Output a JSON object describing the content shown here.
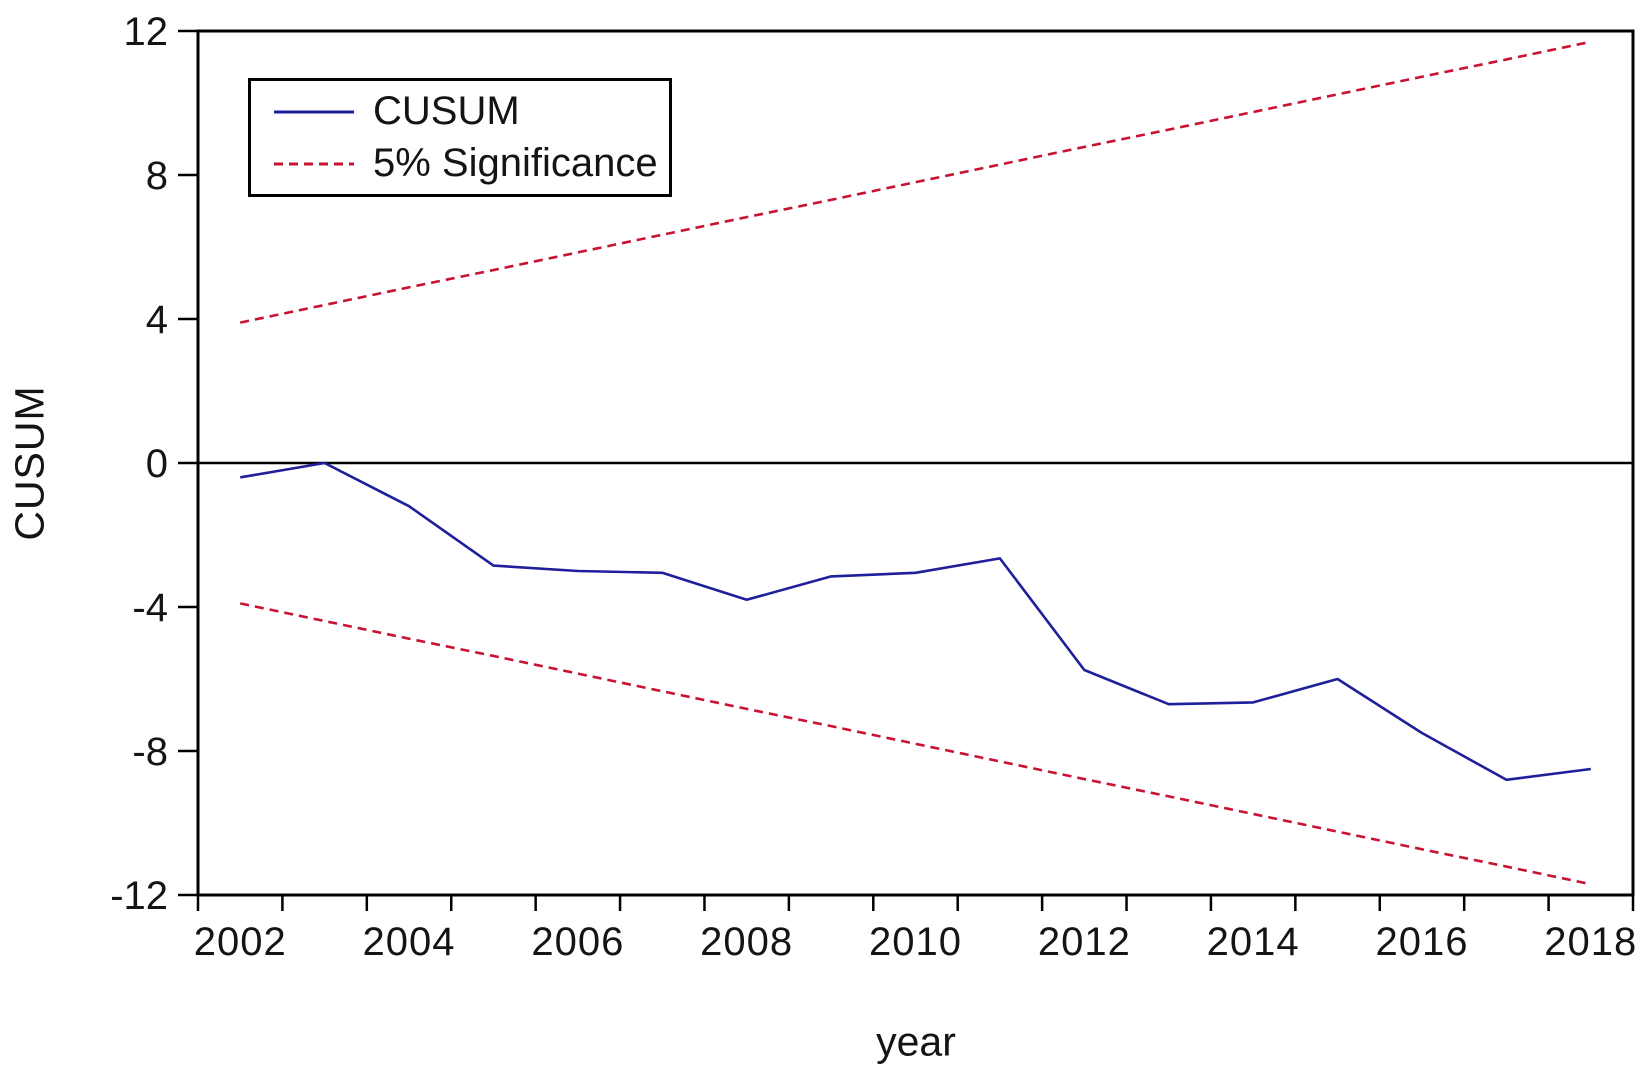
{
  "legend": {
    "entries": [
      {
        "label": "CUSUM",
        "color": "#1f1f9c",
        "line_style": "solid"
      },
      {
        "label": "5% Significance",
        "color": "#c81432",
        "line_style": "dashed"
      }
    ]
  },
  "chart_data": {
    "type": "line",
    "title": "",
    "xlabel": "year",
    "ylabel": "CUSUM",
    "x": [
      2002,
      2003,
      2004,
      2005,
      2006,
      2007,
      2008,
      2009,
      2010,
      2011,
      2012,
      2013,
      2014,
      2015,
      2016,
      2017,
      2018
    ],
    "series": [
      {
        "name": "CUSUM",
        "color": "#1f1f9c",
        "line_style": "solid",
        "values": [
          -0.4,
          0.0,
          -1.2,
          -2.85,
          -3.0,
          -3.05,
          -3.8,
          -3.15,
          -3.05,
          -2.65,
          -5.75,
          -6.7,
          -6.65,
          -6.0,
          -7.5,
          -8.8,
          -8.5
        ]
      },
      {
        "name": "5% Significance (upper)",
        "color": "#c81432",
        "line_style": "dashed",
        "values": [
          3.9,
          4.39,
          4.88,
          5.36,
          5.85,
          6.34,
          6.83,
          7.31,
          7.8,
          8.29,
          8.78,
          9.26,
          9.75,
          10.24,
          10.73,
          11.21,
          11.7
        ]
      },
      {
        "name": "5% Significance (lower)",
        "color": "#c81432",
        "line_style": "dashed",
        "values": [
          -3.9,
          -4.39,
          -4.88,
          -5.36,
          -5.85,
          -6.34,
          -6.83,
          -7.31,
          -7.8,
          -8.29,
          -8.78,
          -9.26,
          -9.75,
          -10.24,
          -10.73,
          -11.21,
          -11.7
        ]
      }
    ],
    "xlim": [
      2001.5,
      2018.5
    ],
    "ylim": [
      -12,
      12
    ],
    "yticks": [
      -12,
      -8,
      -4,
      0,
      4,
      8,
      12
    ],
    "xticks_labeled": [
      2002,
      2004,
      2006,
      2008,
      2010,
      2012,
      2014,
      2016,
      2018
    ],
    "x_minor_tick_step": 1,
    "zero_line": true,
    "grid": false,
    "legend_position": "top-left"
  }
}
